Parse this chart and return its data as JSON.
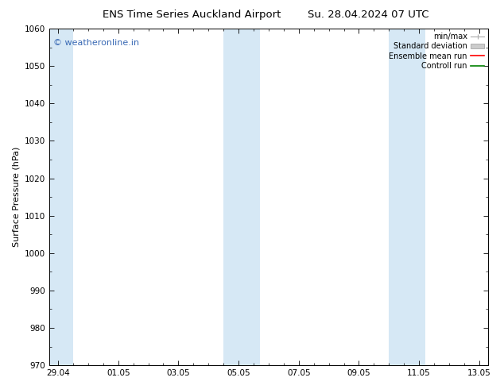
{
  "title_left": "ENS Time Series Auckland Airport",
  "title_right": "Su. 28.04.2024 07 UTC",
  "ylabel": "Surface Pressure (hPa)",
  "ylim": [
    970,
    1060
  ],
  "yticks": [
    970,
    980,
    990,
    1000,
    1010,
    1020,
    1030,
    1040,
    1050,
    1060
  ],
  "xtick_labels": [
    "29.04",
    "01.05",
    "03.05",
    "05.05",
    "07.05",
    "09.05",
    "11.05",
    "13.05"
  ],
  "xlim_start": -0.3,
  "xlim_end": 14.3,
  "xtick_positions": [
    0,
    2,
    4,
    6,
    8,
    10,
    12,
    14
  ],
  "shaded_bands": [
    {
      "x_start": -0.3,
      "x_end": 0.5
    },
    {
      "x_start": 5.5,
      "x_end": 6.7
    },
    {
      "x_start": 11.0,
      "x_end": 12.2
    }
  ],
  "shade_color": "#d6e8f5",
  "background_color": "#ffffff",
  "watermark_text": "© weatheronline.in",
  "watermark_color": "#3a6ab5",
  "legend_entries": [
    {
      "label": "min/max",
      "color": "#aaaaaa",
      "style": "line_with_caps"
    },
    {
      "label": "Standard deviation",
      "color": "#cccccc",
      "style": "thick_line"
    },
    {
      "label": "Ensemble mean run",
      "color": "#ff0000",
      "style": "line"
    },
    {
      "label": "Controll run",
      "color": "#008000",
      "style": "line"
    }
  ],
  "title_fontsize": 9.5,
  "tick_fontsize": 7.5,
  "ylabel_fontsize": 8,
  "legend_fontsize": 7,
  "watermark_fontsize": 8
}
